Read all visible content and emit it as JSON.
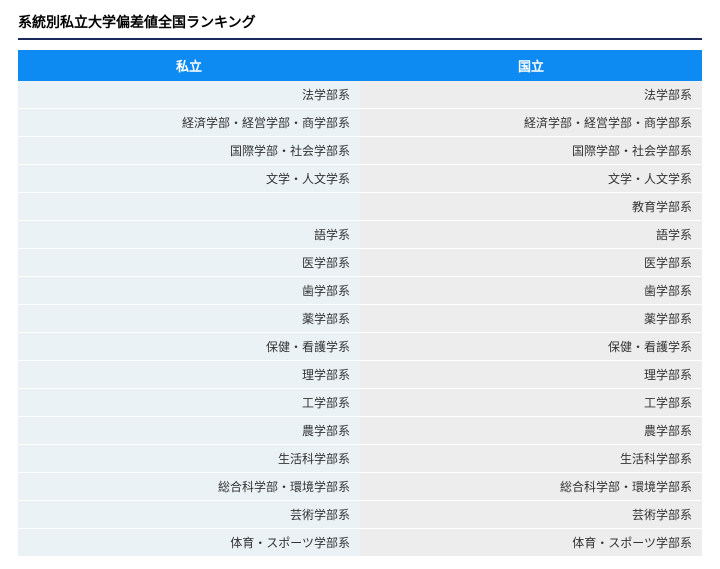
{
  "title": "系統別私立大学偏差値全国ランキング",
  "table": {
    "headers": {
      "private": "私立",
      "national": "国立"
    },
    "rows": [
      {
        "private": "法学部系",
        "national": "法学部系"
      },
      {
        "private": "経済学部・経営学部・商学部系",
        "national": "経済学部・経営学部・商学部系"
      },
      {
        "private": "国際学部・社会学部系",
        "national": "国際学部・社会学部系"
      },
      {
        "private": "文学・人文学系",
        "national": "文学・人文学系"
      },
      {
        "private": "",
        "national": "教育学部系"
      },
      {
        "private": "語学系",
        "national": "語学系"
      },
      {
        "private": "医学部系",
        "national": "医学部系"
      },
      {
        "private": "歯学部系",
        "national": "歯学部系"
      },
      {
        "private": "薬学部系",
        "national": "薬学部系"
      },
      {
        "private": "保健・看護学系",
        "national": "保健・看護学系"
      },
      {
        "private": "理学部系",
        "national": "理学部系"
      },
      {
        "private": "工学部系",
        "national": "工学部系"
      },
      {
        "private": "農学部系",
        "national": "農学部系"
      },
      {
        "private": "生活科学部系",
        "national": "生活科学部系"
      },
      {
        "private": "総合科学部・環境学部系",
        "national": "総合科学部・環境学部系"
      },
      {
        "private": "芸術学部系",
        "national": "芸術学部系"
      },
      {
        "private": "体育・スポーツ学部系",
        "national": "体育・スポーツ学部系"
      }
    ]
  },
  "colors": {
    "header_bg": "#0d8bf2",
    "header_text": "#ffffff",
    "private_bg": "#eaf2f5",
    "national_bg": "#ededed",
    "title_border": "#1a2a5a",
    "cell_text": "#333333"
  }
}
